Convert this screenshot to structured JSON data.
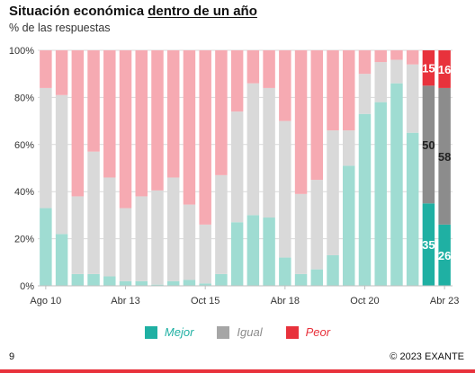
{
  "header": {
    "title_prefix": "Situación económica ",
    "title_emphasis": "dentro de un año",
    "subtitle": "% de las respuestas"
  },
  "colors": {
    "mejor": "#9fdcd2",
    "igual": "#d9d9d9",
    "peor": "#f6aab2",
    "mejor_highlight": "#1fb0a3",
    "igual_highlight": "#8c8c8c",
    "peor_highlight": "#e8323c"
  },
  "chart_data": {
    "type": "bar",
    "stacked": true,
    "ylim": [
      0,
      100
    ],
    "y_ticks": [
      "0%",
      "20%",
      "40%",
      "60%",
      "80%",
      "100%"
    ],
    "x_tick_labels": [
      "Ago 10",
      "Abr 13",
      "Oct 15",
      "Abr 18",
      "Oct 20",
      "Abr 23"
    ],
    "x_tick_positions": [
      0,
      5,
      10,
      15,
      20,
      25
    ],
    "grid": true,
    "legend_position": "bottom",
    "series": [
      {
        "name": "Mejor",
        "values": [
          33,
          22,
          5,
          5,
          4,
          2,
          2,
          0.5,
          2,
          2.5,
          1,
          5,
          27,
          30,
          29,
          12,
          5,
          7,
          13,
          51,
          73,
          78,
          86,
          65,
          35,
          26
        ]
      },
      {
        "name": "Igual",
        "values": [
          51,
          59,
          33,
          52,
          42,
          31,
          36,
          40,
          44,
          32,
          25,
          42,
          47,
          56,
          55,
          58,
          34,
          38,
          53,
          15,
          17,
          17,
          10,
          29,
          50,
          58
        ]
      },
      {
        "name": "Peor",
        "values": [
          16,
          19,
          62,
          43,
          54,
          67,
          62,
          59.5,
          54,
          65.5,
          74,
          53,
          26,
          14,
          16,
          30,
          61,
          55,
          34,
          34,
          10,
          5,
          4,
          6,
          15,
          16
        ]
      }
    ],
    "highlighted_bars": [
      24,
      25
    ],
    "data_labels": [
      {
        "bar": 24,
        "series": "Mejor",
        "text": "35"
      },
      {
        "bar": 24,
        "series": "Igual",
        "text": "50"
      },
      {
        "bar": 24,
        "series": "Peor",
        "text": "15"
      },
      {
        "bar": 25,
        "series": "Mejor",
        "text": "26"
      },
      {
        "bar": 25,
        "series": "Igual",
        "text": "58"
      },
      {
        "bar": 25,
        "series": "Peor",
        "text": "16"
      }
    ]
  },
  "legend": {
    "mejor": "Mejor",
    "igual": "Igual",
    "peor": "Peor"
  },
  "footer": {
    "page_number": "9",
    "copyright": "© 2023 EXANTE"
  }
}
